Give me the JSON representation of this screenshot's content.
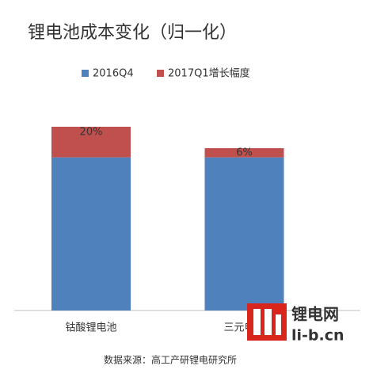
{
  "chart_data": {
    "type": "stacked-bar",
    "title": "锂电池成本变化（归一化）",
    "categories": [
      "钴酸锂电池",
      "三元电池"
    ],
    "series": [
      {
        "name": "2016Q4",
        "color": "#4f81bd",
        "values": [
          100,
          100
        ]
      },
      {
        "name": "2017Q1增长幅度",
        "color": "#c0504d",
        "values": [
          20,
          6
        ],
        "value_labels": [
          "20%",
          "6%"
        ]
      }
    ],
    "source": "数据来源：高工产研锂电研究所"
  },
  "watermark": {
    "name": "锂电网",
    "url": "li-b.cn"
  }
}
